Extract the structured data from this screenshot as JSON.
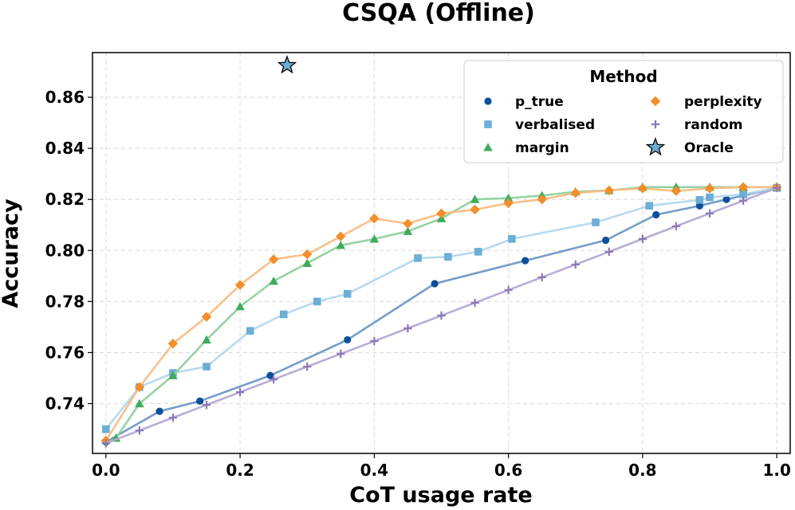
{
  "chart_data": {
    "type": "line",
    "title": "CSQA (Offline)",
    "xlabel": "CoT usage rate",
    "ylabel": "Accuracy",
    "xlim": [
      -0.02,
      1.02
    ],
    "ylim": [
      0.7205,
      0.8775
    ],
    "xticks": [
      0.0,
      0.2,
      0.4,
      0.6,
      0.8,
      1.0
    ],
    "xtick_labels": [
      "0.0",
      "0.2",
      "0.4",
      "0.6",
      "0.8",
      "1.0"
    ],
    "yticks": [
      0.74,
      0.76,
      0.78,
      0.8,
      0.82,
      0.84,
      0.86
    ],
    "ytick_labels": [
      "0.74",
      "0.76",
      "0.78",
      "0.80",
      "0.82",
      "0.84",
      "0.86"
    ],
    "grid": true,
    "legend": {
      "title": "Method",
      "position": "top-right",
      "columns": 2
    },
    "series": [
      {
        "name": "p_true",
        "marker": "circle",
        "color": "#0d4f9c",
        "line_color": "#6e98c6",
        "x": [
          0.0,
          0.08,
          0.14,
          0.245,
          0.36,
          0.49,
          0.625,
          0.745,
          0.82,
          0.885,
          0.925,
          1.0
        ],
        "y": [
          0.725,
          0.737,
          0.741,
          0.751,
          0.765,
          0.787,
          0.796,
          0.804,
          0.814,
          0.8175,
          0.82,
          0.8245
        ]
      },
      {
        "name": "verbalised",
        "marker": "square",
        "color": "#6baed6",
        "line_color": "#b3d7ee",
        "x": [
          0.0,
          0.05,
          0.1,
          0.15,
          0.215,
          0.265,
          0.315,
          0.36,
          0.465,
          0.51,
          0.555,
          0.605,
          0.73,
          0.81,
          0.885,
          0.9,
          0.95,
          1.0
        ],
        "y": [
          0.73,
          0.7465,
          0.752,
          0.7545,
          0.7685,
          0.775,
          0.78,
          0.783,
          0.797,
          0.7975,
          0.7995,
          0.8045,
          0.811,
          0.8175,
          0.8198,
          0.8208,
          0.822,
          0.8245
        ]
      },
      {
        "name": "margin",
        "marker": "triangle",
        "color": "#41ab5d",
        "line_color": "#8fd19e",
        "x": [
          0.015,
          0.05,
          0.1,
          0.15,
          0.2,
          0.25,
          0.3,
          0.35,
          0.4,
          0.45,
          0.5,
          0.55,
          0.6,
          0.65,
          0.7,
          0.75,
          0.8,
          0.85,
          0.9,
          0.95,
          1.0
        ],
        "y": [
          0.7265,
          0.74,
          0.751,
          0.765,
          0.778,
          0.788,
          0.795,
          0.802,
          0.8045,
          0.8075,
          0.8125,
          0.82,
          0.8205,
          0.8215,
          0.823,
          0.8235,
          0.8248,
          0.8248,
          0.8248,
          0.8248,
          0.8248
        ]
      },
      {
        "name": "perplexity",
        "marker": "diamond",
        "color": "#f28e2b",
        "line_color": "#f8bd86",
        "x": [
          0.0,
          0.05,
          0.1,
          0.15,
          0.2,
          0.25,
          0.3,
          0.35,
          0.4,
          0.45,
          0.5,
          0.55,
          0.6,
          0.65,
          0.7,
          0.75,
          0.8,
          0.85,
          0.9,
          0.95,
          1.0
        ],
        "y": [
          0.7255,
          0.7465,
          0.7635,
          0.774,
          0.7865,
          0.7965,
          0.7985,
          0.8055,
          0.8125,
          0.8105,
          0.8145,
          0.816,
          0.8185,
          0.82,
          0.8225,
          0.8235,
          0.8243,
          0.8233,
          0.8243,
          0.8248,
          0.8248
        ]
      },
      {
        "name": "random",
        "marker": "plus",
        "color": "#8c7ab8",
        "line_color": "#b5a8d4",
        "x": [
          0.0,
          0.05,
          0.1,
          0.15,
          0.2,
          0.25,
          0.3,
          0.35,
          0.4,
          0.45,
          0.5,
          0.55,
          0.6,
          0.65,
          0.7,
          0.75,
          0.8,
          0.85,
          0.9,
          0.95,
          1.0
        ],
        "y": [
          0.7245,
          0.7295,
          0.7345,
          0.7395,
          0.7445,
          0.7495,
          0.7545,
          0.7595,
          0.7645,
          0.7695,
          0.7745,
          0.7795,
          0.7845,
          0.7895,
          0.7945,
          0.7995,
          0.8045,
          0.8095,
          0.8145,
          0.8195,
          0.8245
        ]
      }
    ],
    "oracle": {
      "name": "Oracle",
      "marker": "star",
      "color": "#6baed6",
      "x": 0.27,
      "y": 0.8725
    }
  }
}
